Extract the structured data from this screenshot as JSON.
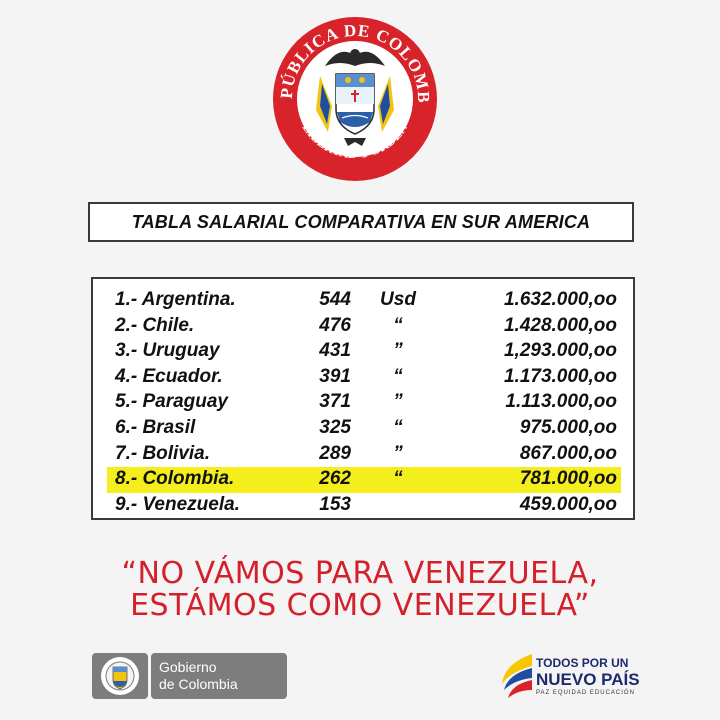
{
  "seal": {
    "top_text": "REPÚBLICA DE COLOMBIA",
    "bottom_text": "LIBERTAD Y ORDEN",
    "ring_color": "#d8232a"
  },
  "title": "TABLA SALARIAL COMPARATIVA EN SUR AMERICA",
  "table": {
    "highlight_color": "#f4ee1c",
    "rows": [
      {
        "name": "1.- Argentina.",
        "num": "544",
        "cur": "Usd",
        "amount": "1.632.000,oo",
        "highlight": false
      },
      {
        "name": "2.- Chile.",
        "num": "476",
        "cur": "“",
        "amount": "1.428.000,oo",
        "highlight": false
      },
      {
        "name": "3.- Uruguay",
        "num": "431",
        "cur": "”",
        "amount": "1,293.000,oo",
        "highlight": false
      },
      {
        "name": "4.- Ecuador.",
        "num": "391",
        "cur": "“",
        "amount": "1.173.000,oo",
        "highlight": false
      },
      {
        "name": "5.- Paraguay",
        "num": "371",
        "cur": "”",
        "amount": "1.113.000,oo",
        "highlight": false
      },
      {
        "name": "6.- Brasil",
        "num": "325",
        "cur": "“",
        "amount": "975.000,oo",
        "highlight": false
      },
      {
        "name": "7.- Bolivia.",
        "num": "289",
        "cur": "”",
        "amount": "867.000,oo",
        "highlight": false
      },
      {
        "name": "8.- Colombia.",
        "num": "262",
        "cur": "“",
        "amount": "781.000,oo",
        "highlight": true
      },
      {
        "name": "9.- Venezuela.",
        "num": "153",
        "cur": "",
        "amount": "459.000,oo",
        "highlight": false
      }
    ]
  },
  "quote": {
    "line1": "“NO VÁMOS PARA VENEZUELA,",
    "line2": "ESTÁMOS  COMO VENEZUELA”",
    "color": "#d4202a"
  },
  "footer": {
    "gobierno_line1": "Gobierno",
    "gobierno_line2": "de Colombia",
    "campaign_line1": "TODOS POR UN",
    "campaign_line2": "NUEVO PAÍS",
    "campaign_line3": "PAZ  EQUIDAD  EDUCACIÓN"
  }
}
